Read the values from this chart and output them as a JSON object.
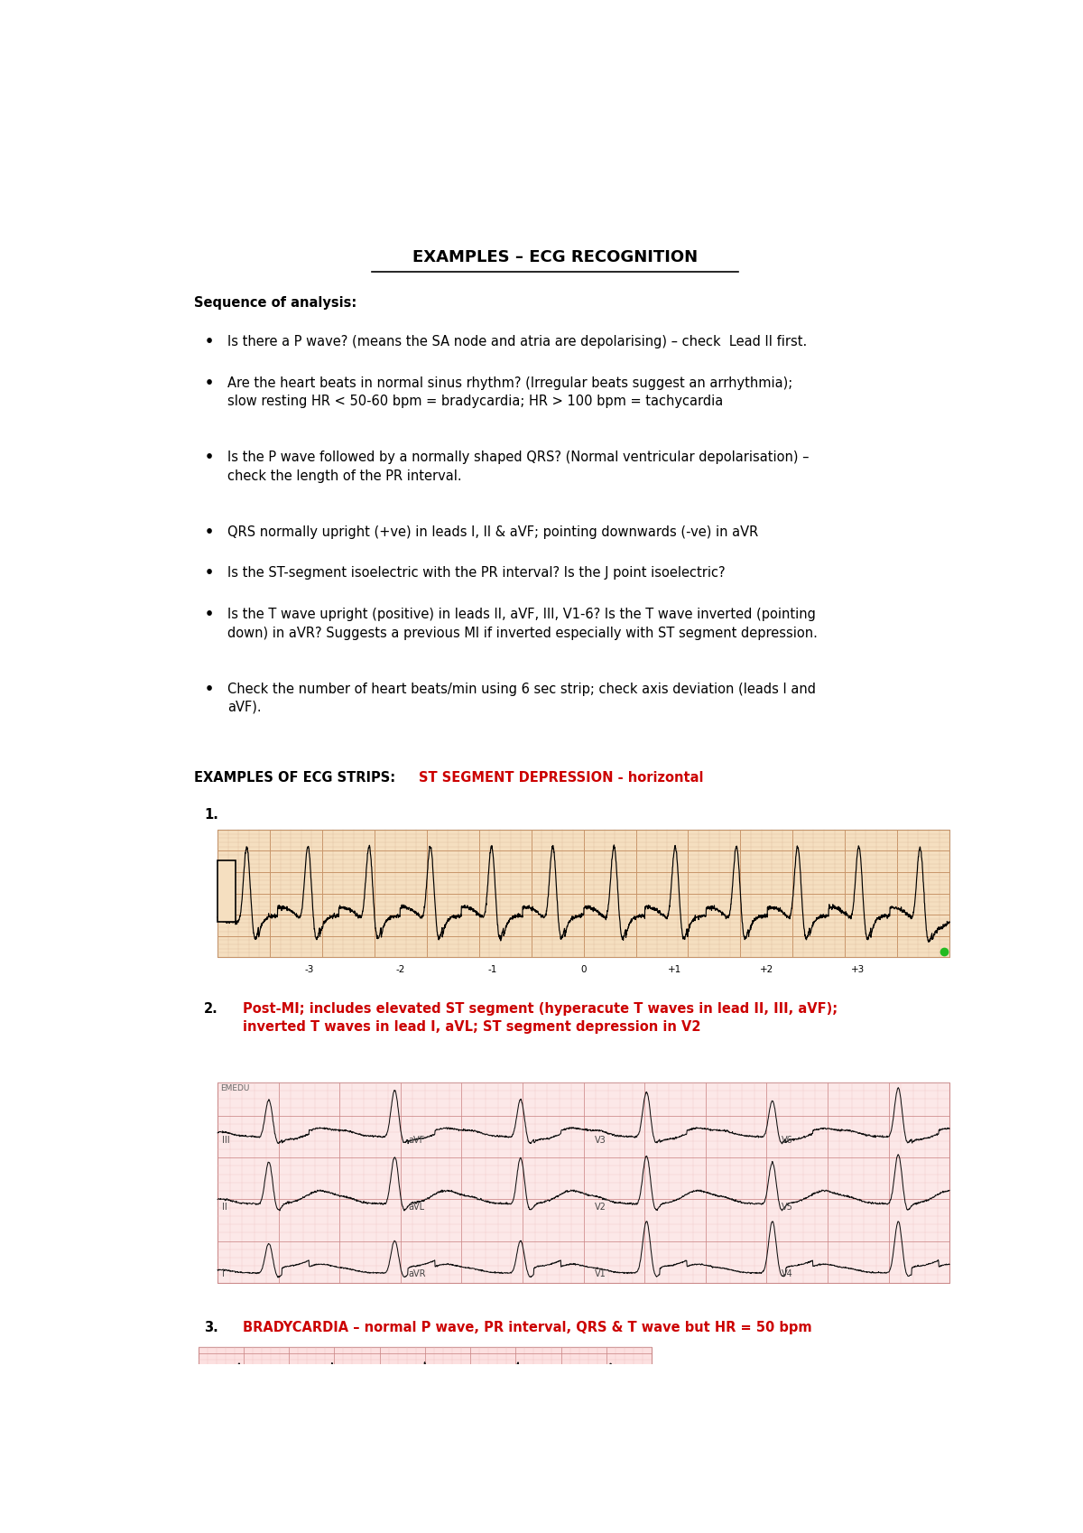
{
  "title": "EXAMPLES – ECG RECOGNITION",
  "background_color": "#ffffff",
  "text_color": "#000000",
  "red_color": "#cc0000",
  "sequence_header": "Sequence of analysis:",
  "bullets": [
    "Is there a P wave? (means the SA node and atria are depolarising) – check  Lead II first.",
    "Are the heart beats in normal sinus rhythm? (Irregular beats suggest an arrhythmia);\nslow resting HR < 50-60 bpm = bradycardia; HR > 100 bpm = tachycardia",
    "Is the P wave followed by a normally shaped QRS? (Normal ventricular depolarisation) –\ncheck the length of the PR interval.",
    "QRS normally upright (+ve) in leads I, II & aVF; pointing downwards (-ve) in aVR",
    "Is the ST-segment isoelectric with the PR interval? Is the J point isoelectric?",
    "Is the T wave upright (positive) in leads II, aVF, III, V1-6? Is the T wave inverted (pointing\ndown) in aVR? Suggests a previous MI if inverted especially with ST segment depression.",
    "Check the number of heart beats/min using 6 sec strip; check axis deviation (leads I and\naVF)."
  ],
  "examples_header_black": "EXAMPLES OF ECG STRIPS: ",
  "examples_header_red": "ST SEGMENT DEPRESSION - horizontal",
  "item1_label": "1.",
  "item2_label": "2.",
  "item2_text_red": "Post-MI; includes elevated ST segment (hyperacute T waves in lead II, III, aVF);\ninverted T waves in lead I, aVL; ST segment depression in V2",
  "item3_label": "3.",
  "item3_text_red": "BRADYCARDIA – normal P wave, PR interval, QRS & T wave but HR = 50 bpm",
  "ecg1_bg": "#f5dfc0",
  "ecg2_bg": "#fce8e8",
  "ecg3_bg": "#fce0e0",
  "font_size_title": 13,
  "font_size_body": 10.5,
  "font_size_bullet": 10.5,
  "lm": 0.07,
  "rm": 0.97,
  "bullet_line_counts": [
    1,
    2,
    2,
    1,
    1,
    2,
    2
  ]
}
